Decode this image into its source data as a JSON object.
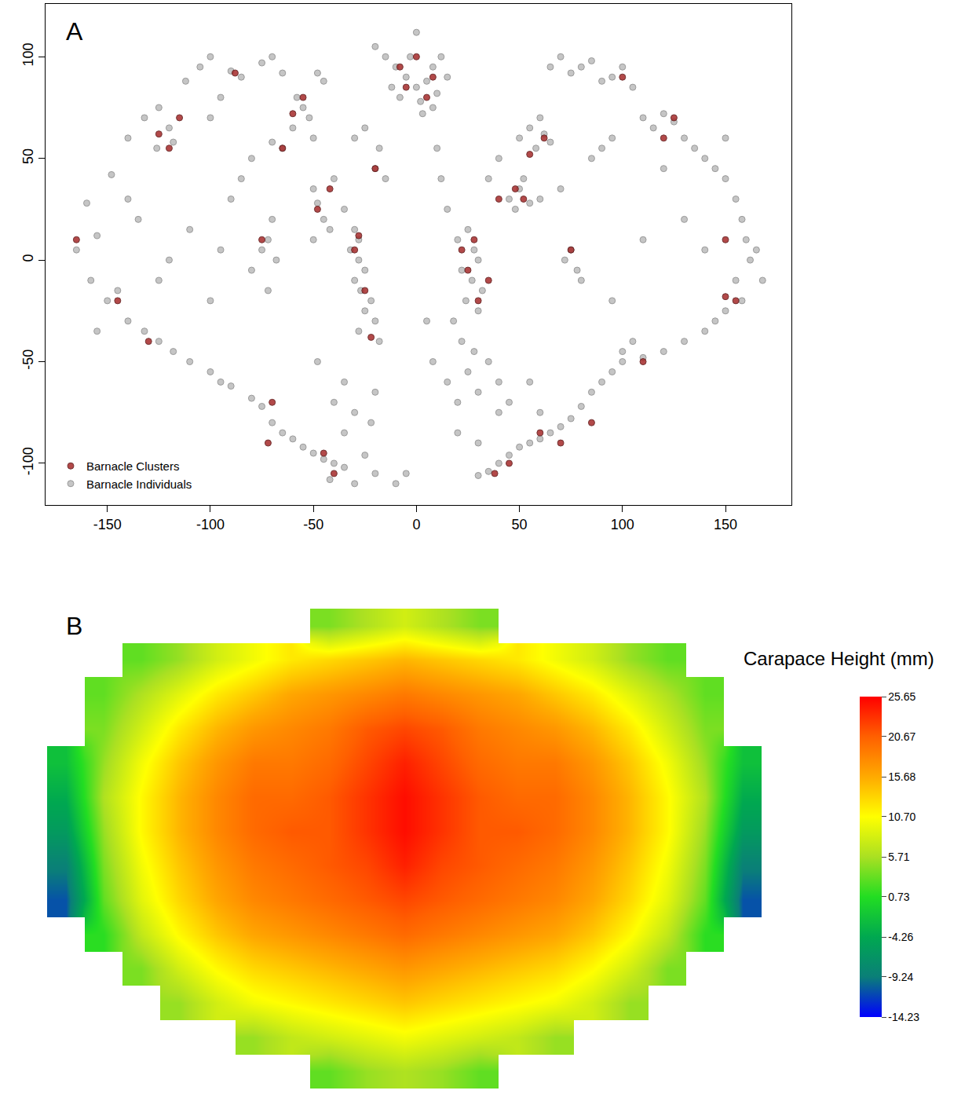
{
  "chart_data": [
    {
      "panel_label": "A",
      "type": "scatter",
      "series": [
        {
          "name": "Barnacle Clusters",
          "color": "#a52a2a",
          "marker": "circle",
          "x": [
            -125,
            -115,
            -120,
            -88,
            -60,
            -55,
            -48,
            -42,
            -30,
            -25,
            -22,
            -28,
            -70,
            -72,
            -45,
            -40,
            -5,
            5,
            -8,
            8,
            0,
            28,
            25,
            30,
            22,
            40,
            48,
            52,
            62,
            55,
            75,
            85,
            70,
            45,
            38,
            100,
            120,
            125,
            150,
            155,
            150,
            110,
            -165,
            -145,
            -130,
            -65,
            -75,
            -20,
            35,
            60
          ],
          "y": [
            62,
            70,
            55,
            92,
            72,
            80,
            25,
            35,
            5,
            -15,
            -38,
            12,
            -70,
            -90,
            -95,
            -105,
            85,
            80,
            95,
            90,
            100,
            10,
            -5,
            -20,
            5,
            30,
            35,
            30,
            60,
            52,
            5,
            -80,
            -90,
            -100,
            -105,
            90,
            60,
            70,
            10,
            -20,
            -18,
            -50,
            10,
            -20,
            -40,
            55,
            10,
            45,
            -10,
            -85
          ]
        },
        {
          "name": "Barnacle Individuals",
          "color": "#808080",
          "marker": "circle",
          "x": [
            -160,
            -165,
            -158,
            -150,
            -155,
            -148,
            -140,
            -132,
            -125,
            -120,
            -118,
            -126,
            -112,
            -105,
            -100,
            -90,
            -85,
            -75,
            -70,
            -65,
            -95,
            -140,
            -135,
            -145,
            -140,
            -132,
            -125,
            -118,
            -110,
            -100,
            -95,
            -90,
            -80,
            -75,
            -70,
            -65,
            -60,
            -55,
            -50,
            -45,
            -40,
            -35,
            -42,
            -30,
            -25,
            -20,
            -10,
            -5,
            -155,
            -58,
            -55,
            -52,
            -60,
            -50,
            -65,
            -70,
            -45,
            -48,
            -50,
            -48,
            -45,
            -42,
            -50,
            -40,
            -35,
            -30,
            -28,
            -32,
            -28,
            -25,
            -30,
            -27,
            -22,
            -25,
            -20,
            -28,
            -18,
            -70,
            -72,
            -75,
            -68,
            -80,
            -72,
            -90,
            -85,
            -80,
            -100,
            -20,
            -15,
            -18,
            -25,
            -30,
            -48,
            -35,
            -40,
            -30,
            -20,
            -22,
            -35,
            -100,
            -95,
            -125,
            -120,
            -110,
            -15,
            -10,
            -5,
            0,
            5,
            10,
            -8,
            2,
            8,
            12,
            -20,
            -12,
            3,
            15,
            0,
            -3,
            8,
            20,
            25,
            28,
            30,
            22,
            27,
            32,
            24,
            30,
            18,
            22,
            28,
            25,
            30,
            20,
            15,
            35,
            40,
            20,
            30,
            45,
            50,
            55,
            48,
            60,
            52,
            50,
            55,
            60,
            58,
            62,
            65,
            40,
            35,
            12,
            15,
            10,
            70,
            75,
            78,
            72,
            80,
            45,
            55,
            40,
            60,
            5,
            8,
            65,
            70,
            75,
            80,
            90,
            95,
            100,
            85,
            105,
            110,
            115,
            120,
            125,
            130,
            135,
            140,
            145,
            150,
            155,
            158,
            160,
            162,
            155,
            158,
            150,
            145,
            140,
            130,
            120,
            110,
            100,
            95,
            90,
            85,
            80,
            75,
            70,
            65,
            60,
            55,
            50,
            45,
            40,
            35,
            30,
            100,
            105,
            95,
            90,
            85,
            95,
            130,
            140,
            150,
            120,
            110,
            165,
            168
          ],
          "y": [
            28,
            5,
            -10,
            -20,
            12,
            42,
            60,
            70,
            75,
            65,
            58,
            55,
            88,
            95,
            100,
            93,
            90,
            97,
            100,
            92,
            80,
            30,
            20,
            -15,
            -30,
            -35,
            -40,
            -45,
            -50,
            -55,
            -60,
            -62,
            -68,
            -72,
            -80,
            -85,
            -88,
            -92,
            -95,
            -98,
            -100,
            -102,
            -108,
            -110,
            -96,
            -105,
            -110,
            -105,
            -35,
            80,
            75,
            70,
            65,
            60,
            55,
            58,
            88,
            92,
            35,
            28,
            20,
            15,
            10,
            40,
            25,
            15,
            10,
            5,
            0,
            -5,
            -10,
            -15,
            -20,
            -25,
            -30,
            -35,
            -40,
            20,
            10,
            5,
            0,
            -5,
            -15,
            30,
            40,
            50,
            70,
            45,
            40,
            55,
            65,
            60,
            -50,
            -60,
            -70,
            -75,
            -65,
            -80,
            -85,
            -20,
            5,
            -10,
            0,
            15,
            100,
            95,
            90,
            85,
            88,
            82,
            80,
            78,
            95,
            100,
            105,
            85,
            72,
            90,
            112,
            100,
            75,
            10,
            15,
            5,
            0,
            -5,
            -10,
            -15,
            -20,
            -25,
            -30,
            -40,
            -45,
            -55,
            -65,
            -70,
            -60,
            -50,
            -75,
            -85,
            -90,
            30,
            35,
            28,
            25,
            30,
            40,
            60,
            65,
            70,
            55,
            62,
            58,
            50,
            40,
            40,
            25,
            55,
            35,
            5,
            -5,
            0,
            -10,
            -70,
            -60,
            -60,
            -75,
            -30,
            -50,
            95,
            100,
            92,
            95,
            88,
            90,
            95,
            98,
            85,
            70,
            65,
            72,
            68,
            60,
            55,
            50,
            45,
            40,
            30,
            20,
            10,
            0,
            -10,
            -20,
            -25,
            -30,
            -35,
            -40,
            -45,
            -48,
            -50,
            -55,
            -60,
            -65,
            -72,
            -78,
            -82,
            -85,
            -88,
            -90,
            -92,
            -96,
            -100,
            -104,
            -106,
            -45,
            -40,
            -20,
            55,
            50,
            60,
            20,
            5,
            60,
            45,
            10,
            5,
            -10
          ]
        }
      ],
      "xlim": [
        -180,
        182
      ],
      "ylim": [
        -120.5,
        126
      ],
      "xticks": [
        -150,
        -100,
        -50,
        0,
        50,
        100,
        150
      ],
      "yticks": [
        -100,
        -50,
        0,
        50,
        100
      ],
      "grid": false,
      "legend": "lower left"
    },
    {
      "panel_label": "B",
      "type": "heatmap",
      "x": [
        -9,
        -8,
        -7,
        -6,
        -5,
        -4,
        -3,
        -2,
        -1,
        0,
        1,
        2,
        3,
        4,
        5,
        6,
        7,
        8,
        9
      ],
      "y": [
        13,
        12,
        11,
        10,
        9,
        8,
        7,
        6,
        5,
        4,
        3,
        2,
        1,
        0
      ],
      "z": [
        [
          null,
          null,
          null,
          null,
          null,
          null,
          null,
          4,
          6,
          8,
          6,
          4,
          null,
          null,
          null,
          null,
          null,
          null,
          null
        ],
        [
          null,
          null,
          3,
          5,
          8,
          10,
          12,
          13,
          14,
          15,
          14,
          13,
          12,
          10,
          8,
          5,
          3,
          null,
          null
        ],
        [
          null,
          3,
          6,
          9,
          12,
          14,
          16,
          17,
          18,
          19,
          18,
          17,
          16,
          14,
          12,
          9,
          6,
          3,
          null
        ],
        [
          null,
          4,
          8,
          12,
          15,
          17,
          18,
          19,
          21,
          22,
          21,
          19,
          18,
          17,
          15,
          12,
          8,
          4,
          null
        ],
        [
          -2,
          5,
          10,
          14,
          17,
          19,
          19,
          20,
          22,
          24,
          22,
          20,
          19,
          19,
          17,
          14,
          10,
          5,
          -2
        ],
        [
          -4,
          6,
          11,
          15,
          18,
          20,
          20,
          21,
          23,
          25,
          23,
          21,
          20,
          20,
          18,
          15,
          11,
          6,
          -4
        ],
        [
          -6,
          5,
          11,
          15,
          18,
          20,
          21,
          21,
          23,
          25,
          23,
          21,
          21,
          20,
          18,
          15,
          11,
          5,
          -6
        ],
        [
          -9,
          4,
          10,
          14,
          17,
          19,
          20,
          21,
          22,
          24,
          22,
          21,
          20,
          19,
          17,
          14,
          10,
          4,
          -9
        ],
        [
          -11,
          3,
          9,
          13,
          16,
          18,
          19,
          20,
          21,
          22,
          21,
          20,
          19,
          18,
          16,
          13,
          9,
          3,
          -11
        ],
        [
          null,
          1,
          7,
          11,
          14,
          16,
          17,
          18,
          19,
          20,
          19,
          18,
          17,
          16,
          14,
          11,
          7,
          1,
          null
        ],
        [
          null,
          null,
          4,
          8,
          11,
          13,
          14,
          15,
          16,
          17,
          16,
          15,
          14,
          13,
          11,
          8,
          4,
          null,
          null
        ],
        [
          null,
          null,
          null,
          5,
          8,
          10,
          11,
          12,
          13,
          14,
          13,
          12,
          11,
          10,
          8,
          5,
          null,
          null,
          null
        ],
        [
          null,
          null,
          null,
          null,
          null,
          5,
          7,
          8,
          9,
          10,
          9,
          8,
          7,
          5,
          null,
          null,
          null,
          null,
          null
        ],
        [
          null,
          null,
          null,
          null,
          null,
          null,
          null,
          3,
          5,
          6,
          5,
          3,
          null,
          null,
          null,
          null,
          null,
          null,
          null
        ]
      ],
      "xlim": [
        -9.5,
        9.5
      ],
      "ylim": [
        -0.5,
        13.5
      ],
      "tick_labels": false,
      "colorbar_title": "Carapace Height (mm)",
      "colorbar_range": [
        -14.23,
        25.65
      ],
      "colorbar_ticks": [
        25.65,
        20.67,
        15.68,
        {
          "value": 10.7,
          "label": "10.70"
        },
        5.71,
        0.73,
        -4.26,
        -9.24,
        -14.23
      ]
    }
  ]
}
